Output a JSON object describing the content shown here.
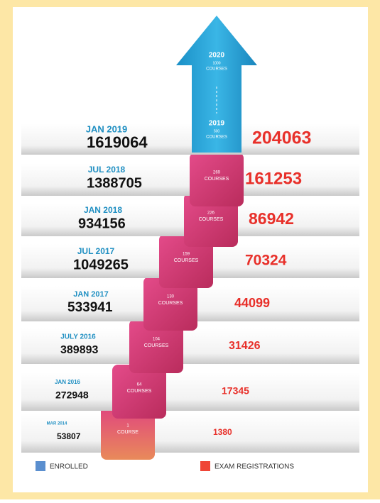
{
  "arrow": {
    "top": {
      "year": "2020",
      "count": "1000",
      "word": "COURSES"
    },
    "bottom": {
      "year": "2019",
      "count": "500",
      "word": "COURSES"
    }
  },
  "steps": [
    {
      "date": "JAN 2019",
      "enrolled": 1619064,
      "exam": 204063
    },
    {
      "date": "JUL 2018",
      "enrolled": 1388705,
      "courses_count": "269",
      "courses_word": "COURSES",
      "exam": 161253
    },
    {
      "date": "JAN 2018",
      "enrolled": 934156,
      "courses_count": "226",
      "courses_word": "COURSES",
      "exam": 86942
    },
    {
      "date": "JUL 2017",
      "enrolled": 1049265,
      "courses_count": "159",
      "courses_word": "COURSES",
      "exam": 70324
    },
    {
      "date": "JAN 2017",
      "enrolled": 533941,
      "courses_count": "130",
      "courses_word": "COURSES",
      "exam": 44099
    },
    {
      "date": "JULY 2016",
      "enrolled": 389893,
      "courses_count": "104",
      "courses_word": "COURSES",
      "exam": 31426
    },
    {
      "date": "JAN 2016",
      "enrolled": 272948,
      "courses_count": "64",
      "courses_word": "COURSES",
      "exam": 17345
    },
    {
      "date": "MAR 2014",
      "enrolled": 53807,
      "courses_count": "1",
      "courses_word": "COURSE",
      "exam": 1380
    }
  ],
  "legend": {
    "enrolled": "ENROLLED",
    "exam": "EXAM REGISTRATIONS"
  }
}
